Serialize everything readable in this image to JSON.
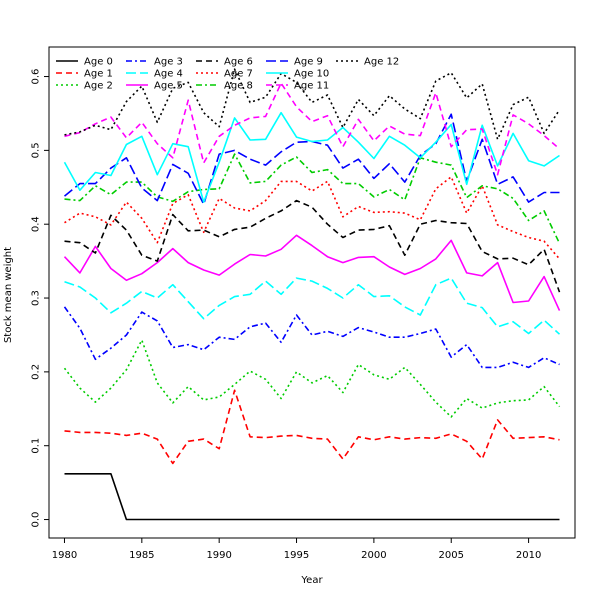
{
  "chart_data": {
    "type": "line",
    "title": "",
    "xlabel": "Year",
    "ylabel": "Stock mean weight",
    "xlim": [
      1979,
      2013
    ],
    "ylim": [
      -0.025,
      0.64
    ],
    "xticks": [
      1980,
      1985,
      1990,
      1995,
      2000,
      2005,
      2010
    ],
    "yticks": [
      0.0,
      0.1,
      0.2,
      0.3,
      0.4,
      0.5,
      0.6
    ],
    "ytick_labels": [
      "0.0",
      "0.1",
      "0.2",
      "0.3",
      "0.4",
      "0.5",
      "0.6"
    ],
    "grid": false,
    "legend_placement": "top-left",
    "x": [
      1980,
      1981,
      1982,
      1983,
      1984,
      1985,
      1986,
      1987,
      1988,
      1989,
      1990,
      1991,
      1992,
      1993,
      1994,
      1995,
      1996,
      1997,
      1998,
      1999,
      2000,
      2001,
      2002,
      2003,
      2004,
      2005,
      2006,
      2007,
      2008,
      2009,
      2010,
      2011,
      2012
    ],
    "series": [
      {
        "name": "Age 0",
        "color": "#000000",
        "dash": "solid",
        "values": [
          0.062,
          0.062,
          0.062,
          0.062,
          0.0,
          0.0,
          0.0,
          0.0,
          0.0,
          0.0,
          0.0,
          0.0,
          0.0,
          0.0,
          0.0,
          0.0,
          0.0,
          0.0,
          0.0,
          0.0,
          0.0,
          0.0,
          0.0,
          0.0,
          0.0,
          0.0,
          0.0,
          0.0,
          0.0,
          0.0,
          0.0,
          0.0,
          0.0
        ]
      },
      {
        "name": "Age 1",
        "color": "#ff0000",
        "dash": "dashed",
        "values": [
          0.12,
          0.118,
          0.118,
          0.117,
          0.114,
          0.117,
          0.109,
          0.076,
          0.106,
          0.109,
          0.096,
          0.175,
          0.112,
          0.111,
          0.113,
          0.114,
          0.11,
          0.109,
          0.082,
          0.112,
          0.108,
          0.112,
          0.109,
          0.111,
          0.11,
          0.116,
          0.106,
          0.082,
          0.135,
          0.11,
          0.111,
          0.112,
          0.108
        ]
      },
      {
        "name": "Age 2",
        "color": "#00cc00",
        "dash": "dotted",
        "values": [
          0.205,
          0.178,
          0.159,
          0.178,
          0.203,
          0.243,
          0.185,
          0.158,
          0.18,
          0.162,
          0.166,
          0.183,
          0.201,
          0.19,
          0.164,
          0.2,
          0.185,
          0.195,
          0.172,
          0.21,
          0.196,
          0.19,
          0.206,
          0.183,
          0.159,
          0.139,
          0.164,
          0.151,
          0.158,
          0.161,
          0.162,
          0.18,
          0.153
        ]
      },
      {
        "name": "Age 3",
        "color": "#0000ff",
        "dash": "dashdot",
        "values": [
          0.288,
          0.259,
          0.217,
          0.232,
          0.25,
          0.281,
          0.269,
          0.233,
          0.237,
          0.23,
          0.247,
          0.244,
          0.261,
          0.266,
          0.24,
          0.277,
          0.25,
          0.255,
          0.248,
          0.26,
          0.254,
          0.247,
          0.247,
          0.252,
          0.258,
          0.22,
          0.237,
          0.206,
          0.206,
          0.213,
          0.206,
          0.219,
          0.21
        ]
      },
      {
        "name": "Age 4",
        "color": "#00ffff",
        "dash": "longdash",
        "values": [
          0.322,
          0.315,
          0.3,
          0.28,
          0.293,
          0.309,
          0.3,
          0.318,
          0.295,
          0.272,
          0.29,
          0.302,
          0.305,
          0.323,
          0.305,
          0.327,
          0.323,
          0.313,
          0.3,
          0.318,
          0.302,
          0.303,
          0.288,
          0.277,
          0.318,
          0.327,
          0.293,
          0.287,
          0.261,
          0.268,
          0.252,
          0.27,
          0.251
        ]
      },
      {
        "name": "Age 5",
        "color": "#ff00ff",
        "dash": "solid",
        "values": [
          0.356,
          0.334,
          0.37,
          0.34,
          0.324,
          0.333,
          0.348,
          0.367,
          0.348,
          0.338,
          0.331,
          0.346,
          0.359,
          0.357,
          0.366,
          0.385,
          0.371,
          0.356,
          0.348,
          0.355,
          0.356,
          0.342,
          0.332,
          0.34,
          0.353,
          0.378,
          0.334,
          0.33,
          0.348,
          0.294,
          0.296,
          0.329,
          0.283
        ]
      },
      {
        "name": "Age 6",
        "color": "#000000",
        "dash": "dashed",
        "values": [
          0.377,
          0.375,
          0.361,
          0.412,
          0.392,
          0.358,
          0.35,
          0.413,
          0.391,
          0.392,
          0.383,
          0.393,
          0.396,
          0.408,
          0.418,
          0.432,
          0.423,
          0.4,
          0.382,
          0.392,
          0.393,
          0.398,
          0.358,
          0.4,
          0.405,
          0.402,
          0.401,
          0.363,
          0.353,
          0.354,
          0.345,
          0.366,
          0.308
        ]
      },
      {
        "name": "Age 7",
        "color": "#ff0000",
        "dash": "dotted",
        "values": [
          0.402,
          0.415,
          0.41,
          0.399,
          0.43,
          0.408,
          0.375,
          0.428,
          0.44,
          0.389,
          0.435,
          0.422,
          0.418,
          0.432,
          0.458,
          0.458,
          0.445,
          0.458,
          0.41,
          0.424,
          0.416,
          0.417,
          0.415,
          0.406,
          0.448,
          0.464,
          0.415,
          0.452,
          0.399,
          0.39,
          0.382,
          0.377,
          0.353
        ]
      },
      {
        "name": "Age 8",
        "color": "#00cc00",
        "dash": "dashdot",
        "values": [
          0.434,
          0.432,
          0.452,
          0.44,
          0.457,
          0.457,
          0.437,
          0.431,
          0.444,
          0.447,
          0.448,
          0.495,
          0.456,
          0.458,
          0.48,
          0.491,
          0.47,
          0.474,
          0.455,
          0.455,
          0.437,
          0.447,
          0.433,
          0.49,
          0.484,
          0.48,
          0.436,
          0.452,
          0.448,
          0.435,
          0.405,
          0.418,
          0.374
        ]
      },
      {
        "name": "Age 9",
        "color": "#0000ff",
        "dash": "longdash",
        "values": [
          0.438,
          0.455,
          0.455,
          0.476,
          0.49,
          0.449,
          0.432,
          0.481,
          0.469,
          0.427,
          0.495,
          0.5,
          0.488,
          0.48,
          0.498,
          0.511,
          0.512,
          0.507,
          0.476,
          0.488,
          0.462,
          0.482,
          0.457,
          0.493,
          0.509,
          0.549,
          0.458,
          0.515,
          0.454,
          0.464,
          0.43,
          0.443,
          0.443
        ]
      },
      {
        "name": "Age 10",
        "color": "#00ffff",
        "dash": "solid",
        "values": [
          0.484,
          0.446,
          0.47,
          0.466,
          0.508,
          0.519,
          0.467,
          0.509,
          0.505,
          0.43,
          0.484,
          0.544,
          0.514,
          0.515,
          0.551,
          0.518,
          0.512,
          0.514,
          0.531,
          0.511,
          0.489,
          0.519,
          0.507,
          0.49,
          0.511,
          0.535,
          0.454,
          0.534,
          0.479,
          0.523,
          0.486,
          0.479,
          0.493
        ]
      },
      {
        "name": "Age 11",
        "color": "#ff00ff",
        "dash": "dashed",
        "values": [
          0.519,
          0.524,
          0.536,
          0.545,
          0.517,
          0.538,
          0.509,
          0.49,
          0.568,
          0.483,
          0.519,
          0.534,
          0.544,
          0.546,
          0.591,
          0.559,
          0.539,
          0.547,
          0.505,
          0.542,
          0.513,
          0.533,
          0.522,
          0.52,
          0.578,
          0.505,
          0.528,
          0.529,
          0.467,
          0.548,
          0.536,
          0.52,
          0.502
        ]
      },
      {
        "name": "Age 12",
        "color": "#000000",
        "dash": "dotted",
        "values": [
          0.521,
          0.525,
          0.534,
          0.528,
          0.566,
          0.587,
          0.538,
          0.584,
          0.592,
          0.551,
          0.532,
          0.61,
          0.565,
          0.572,
          0.604,
          0.592,
          0.565,
          0.575,
          0.531,
          0.569,
          0.547,
          0.574,
          0.556,
          0.543,
          0.594,
          0.605,
          0.571,
          0.59,
          0.515,
          0.562,
          0.572,
          0.523,
          0.555
        ]
      }
    ]
  }
}
